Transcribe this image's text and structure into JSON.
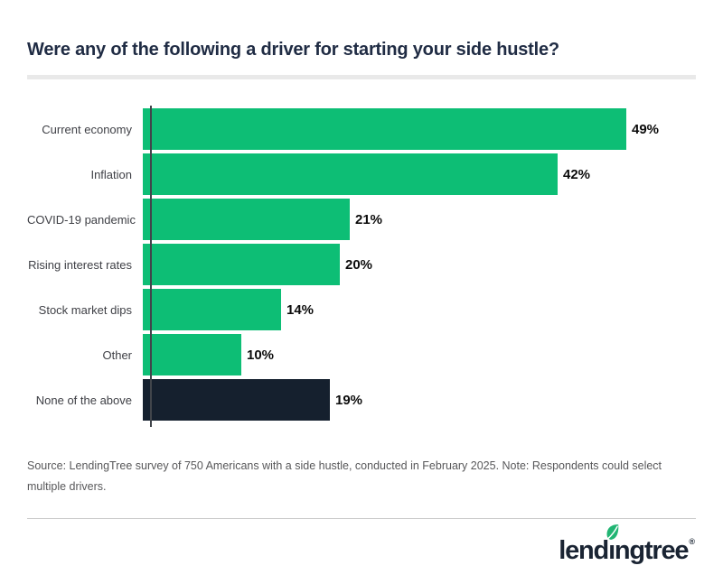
{
  "title": "Were any of the following a driver for starting your side hustle?",
  "chart_data": {
    "type": "bar",
    "orientation": "horizontal",
    "title": "Were any of the following a driver for starting your side hustle?",
    "categories": [
      "Current economy",
      "Inflation",
      "COVID-19 pandemic",
      "Rising interest rates",
      "Stock market dips",
      "Other",
      "None of the above"
    ],
    "values": [
      49,
      42,
      21,
      20,
      14,
      10,
      19
    ],
    "value_labels": [
      "49%",
      "42%",
      "21%",
      "20%",
      "14%",
      "10%",
      "19%"
    ],
    "bar_colors": [
      "#0dbe75",
      "#0dbe75",
      "#0dbe75",
      "#0dbe75",
      "#0dbe75",
      "#0dbe75",
      "#15202e"
    ],
    "xlabel": "",
    "ylabel": "",
    "xlim": [
      0,
      55
    ],
    "grid": false,
    "legend": null
  },
  "source_note": "Source: LendingTree survey of 750 Americans with a side hustle, conducted in February 2025. Note: Respondents could select multiple drivers.",
  "footer": {
    "logo_pre": "lend",
    "logo_i": "ı",
    "logo_post": "ngtree",
    "registered_mark": "®"
  },
  "colors": {
    "bar_green": "#0dbe75",
    "bar_navy": "#15202e",
    "title_navy": "#202c44",
    "axis_gray": "#41454b",
    "category_label_gray": "#3f4046",
    "source_gray": "#58585a",
    "divider_light": "#e9e9e9",
    "divider_thin": "#c9c9c9",
    "leaf_green": "#21b573",
    "logo_navy": "#1a2433"
  }
}
